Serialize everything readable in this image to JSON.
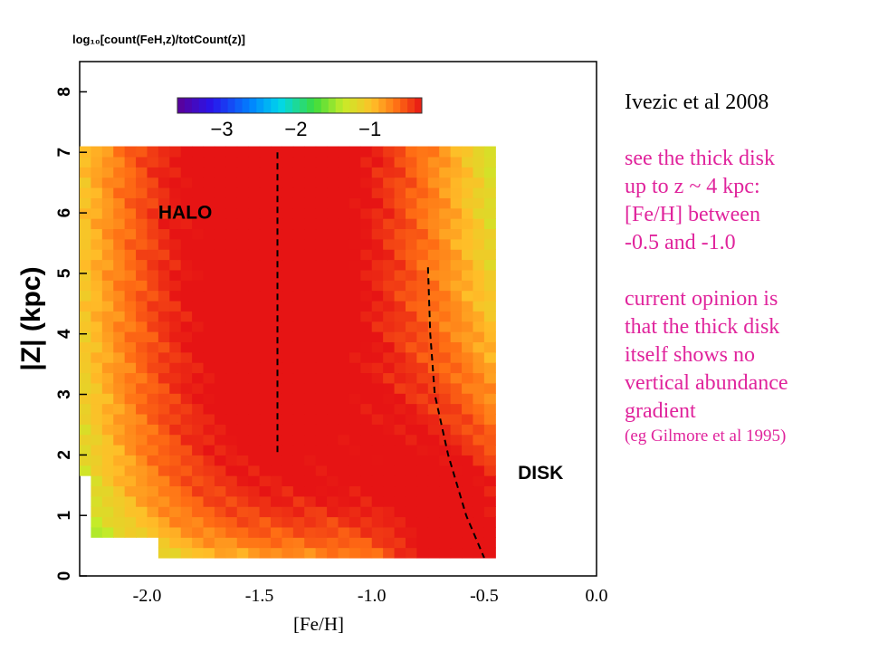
{
  "notes": {
    "reference": "Ivezic et al 2008",
    "paragraph1": [
      "see the thick disk",
      "up to z ~ 4 kpc:",
      "[Fe/H] between",
      "-0.5 and -1.0"
    ],
    "paragraph2": [
      "current opinion is",
      "that the thick disk",
      "itself shows no",
      "vertical abundance",
      "gradient"
    ],
    "citation": "(eg Gilmore et al 1995)",
    "colors": {
      "reference": "#000000",
      "highlight": "#e0249c"
    }
  },
  "chart_data": {
    "type": "heatmap",
    "title": "log₁₀[count(FeH,z)/totCount(z)]",
    "xlabel": "[Fe/H]",
    "ylabel": "|Z| (kpc)",
    "xlim": [
      -2.3,
      0.0
    ],
    "ylim": [
      0,
      8.5
    ],
    "x_ticks": [
      "-2.0",
      "-1.5",
      "-1.0",
      "-0.5",
      "0.0"
    ],
    "x_tick_values": [
      -2.0,
      -1.5,
      -1.0,
      -0.5,
      0.0
    ],
    "y_ticks": [
      "0",
      "1",
      "2",
      "3",
      "4",
      "5",
      "6",
      "7",
      "8"
    ],
    "y_tick_values": [
      0,
      1,
      2,
      3,
      4,
      5,
      6,
      7,
      8
    ],
    "colorbar": {
      "ticks": [
        "−3",
        "−2",
        "−1"
      ],
      "tick_values": [
        -3,
        -2,
        -1
      ],
      "range": [
        -3.6,
        -0.3
      ],
      "colormap": "rainbow"
    },
    "data_extent": {
      "x": [
        -2.25,
        -0.45
      ],
      "z": [
        0.3,
        7.0
      ]
    },
    "halo_peak_feh": -1.45,
    "disk_peak_feh_at_high_z": -0.75,
    "disk_peak_feh_near_plane": -0.5,
    "annotations": [
      {
        "text": "HALO",
        "x": -1.95,
        "z": 5.9
      },
      {
        "text": "DISK",
        "x": -0.35,
        "z": 1.6
      }
    ],
    "dashed_lines": [
      {
        "name": "halo",
        "points": [
          [
            -1.42,
            7.0
          ],
          [
            -1.42,
            2.0
          ]
        ]
      },
      {
        "name": "disk",
        "points": [
          [
            -0.75,
            5.1
          ],
          [
            -0.74,
            4.0
          ],
          [
            -0.72,
            3.0
          ],
          [
            -0.66,
            2.0
          ],
          [
            -0.58,
            1.0
          ],
          [
            -0.5,
            0.3
          ]
        ]
      }
    ],
    "grid": false
  }
}
